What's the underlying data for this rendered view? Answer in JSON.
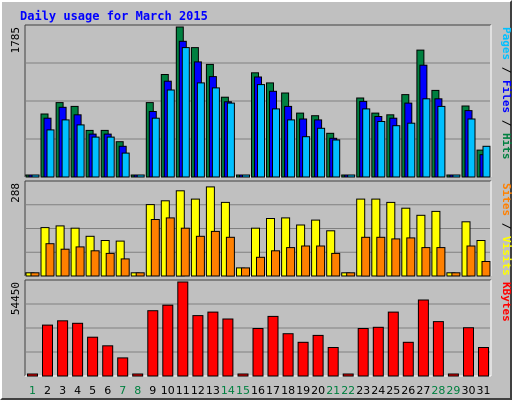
{
  "chart_data": {
    "type": "bar",
    "title": "Daily usage for March 2015",
    "days": [
      "1",
      "2",
      "3",
      "4",
      "5",
      "6",
      "7",
      "8",
      "9",
      "10",
      "11",
      "12",
      "13",
      "14",
      "15",
      "16",
      "17",
      "18",
      "19",
      "20",
      "21",
      "22",
      "23",
      "24",
      "25",
      "26",
      "27",
      "28",
      "29",
      "30",
      "31"
    ],
    "weekend_days": [
      "1",
      "7",
      "8",
      "14",
      "15",
      "21",
      "22",
      "28",
      "29"
    ],
    "panels": [
      {
        "id": "hits",
        "scale_max_label": "1785",
        "scale_max": 1785,
        "legend": [
          {
            "text": "Pages",
            "color": "#00c0ff"
          },
          {
            "text": " / ",
            "color": "#000000"
          },
          {
            "text": "Files",
            "color": "#0000ff"
          },
          {
            "text": " / ",
            "color": "#000000"
          },
          {
            "text": "Hits",
            "color": "#008040"
          }
        ],
        "series": [
          {
            "name": "Hits",
            "color": "#008040",
            "values": [
              20,
              750,
              885,
              840,
              555,
              555,
              420,
              20,
              885,
              1220,
              1785,
              1540,
              1340,
              950,
              20,
              1240,
              1120,
              1000,
              760,
              730,
              520,
              20,
              940,
              760,
              740,
              980,
              1510,
              1030,
              20,
              845,
              320
            ]
          },
          {
            "name": "Files",
            "color": "#0000ff",
            "values": [
              20,
              700,
              830,
              740,
              510,
              510,
              365,
              20,
              780,
              1140,
              1615,
              1370,
              1195,
              895,
              20,
              1190,
              1020,
              840,
              690,
              680,
              460,
              20,
              900,
              720,
              700,
              880,
              1330,
              930,
              20,
              790,
              265
            ]
          },
          {
            "name": "Pages",
            "color": "#00c0ff",
            "values": [
              20,
              560,
              680,
              620,
              475,
              475,
              285,
              20,
              700,
              1035,
              1540,
              1120,
              1060,
              880,
              20,
              1100,
              810,
              680,
              480,
              580,
              440,
              20,
              810,
              660,
              610,
              640,
              930,
              840,
              20,
              690,
              365
            ]
          }
        ]
      },
      {
        "id": "visits",
        "scale_max_label": "288",
        "scale_max": 288,
        "legend": [
          {
            "text": "Sites",
            "color": "#ff8000"
          },
          {
            "text": " / ",
            "color": "#000000"
          },
          {
            "text": "Visits",
            "color": "#ffff00"
          }
        ],
        "series": [
          {
            "name": "Visits",
            "color": "#ffff00",
            "values": [
              10,
              150,
              155,
              148,
              123,
              110,
              108,
              10,
              221,
              233,
              264,
              238,
              276,
              228,
              25,
              148,
              178,
              180,
              158,
              173,
              140,
              10,
              238,
              238,
              228,
              210,
              188,
              200,
              10,
              168,
              110
            ]
          },
          {
            "name": "Sites",
            "color": "#ff8000",
            "values": [
              10,
              100,
              83,
              90,
              78,
              70,
              53,
              10,
              175,
              180,
              148,
              123,
              138,
              120,
              25,
              58,
              78,
              88,
              93,
              93,
              70,
              10,
              120,
              120,
              115,
              118,
              88,
              88,
              10,
              93,
              45
            ]
          }
        ]
      },
      {
        "id": "kbytes",
        "scale_max_label": "54450",
        "scale_max": 54450,
        "legend": [
          {
            "text": "KBytes",
            "color": "#ff0000"
          }
        ],
        "series": [
          {
            "name": "KBytes",
            "color": "#ff0000",
            "values": [
              800,
              29500,
              32000,
              30500,
              22500,
              17500,
              10500,
              1000,
              37800,
              41000,
              54450,
              35000,
              37000,
              33000,
              1000,
              27500,
              34500,
              24500,
              19500,
              23500,
              16500,
              1000,
              27500,
              28200,
              37000,
              19500,
              44000,
              31500,
              1000,
              28000,
              16500
            ]
          }
        ]
      }
    ],
    "grid": true
  }
}
